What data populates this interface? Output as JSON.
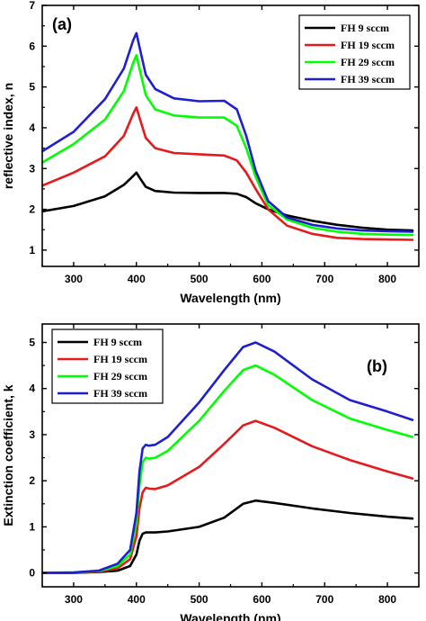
{
  "chart_data": [
    {
      "type": "line",
      "panel_label": "(a)",
      "xlabel": "Wavelength (nm)",
      "ylabel": "reflective index, n",
      "xlim": [
        250,
        850
      ],
      "ylim": [
        0.6,
        7
      ],
      "xticks": [
        300,
        400,
        500,
        600,
        700,
        800
      ],
      "yticks": [
        1,
        2,
        3,
        4,
        5,
        6,
        7
      ],
      "legend_position": "top-right",
      "series": [
        {
          "name": "FH 9 sccm",
          "color": "#000000",
          "x": [
            250,
            300,
            350,
            380,
            395,
            400,
            405,
            415,
            430,
            460,
            500,
            540,
            560,
            575,
            590,
            610,
            640,
            680,
            720,
            760,
            800,
            840
          ],
          "y": [
            1.95,
            2.08,
            2.32,
            2.6,
            2.82,
            2.9,
            2.78,
            2.55,
            2.45,
            2.41,
            2.4,
            2.4,
            2.38,
            2.3,
            2.15,
            2.0,
            1.85,
            1.72,
            1.62,
            1.55,
            1.5,
            1.48
          ]
        },
        {
          "name": "FH 19 sccm",
          "color": "#e41a1c",
          "x": [
            250,
            300,
            350,
            380,
            395,
            400,
            405,
            415,
            430,
            460,
            500,
            540,
            560,
            575,
            590,
            610,
            640,
            680,
            720,
            760,
            800,
            840
          ],
          "y": [
            2.58,
            2.9,
            3.3,
            3.8,
            4.35,
            4.5,
            4.25,
            3.75,
            3.5,
            3.38,
            3.35,
            3.32,
            3.2,
            2.9,
            2.5,
            2.0,
            1.6,
            1.4,
            1.3,
            1.27,
            1.26,
            1.25
          ]
        },
        {
          "name": "FH 29 sccm",
          "color": "#00ff00",
          "x": [
            250,
            300,
            350,
            380,
            395,
            400,
            405,
            415,
            430,
            460,
            500,
            540,
            560,
            575,
            590,
            610,
            640,
            680,
            720,
            760,
            800,
            840
          ],
          "y": [
            3.15,
            3.6,
            4.2,
            4.9,
            5.6,
            5.78,
            5.45,
            4.8,
            4.45,
            4.3,
            4.25,
            4.25,
            4.05,
            3.5,
            2.8,
            2.1,
            1.75,
            1.55,
            1.45,
            1.4,
            1.38,
            1.37
          ]
        },
        {
          "name": "FH 39 sccm",
          "color": "#1f1fd1",
          "x": [
            250,
            300,
            350,
            380,
            395,
            400,
            405,
            415,
            430,
            460,
            500,
            540,
            560,
            575,
            590,
            610,
            640,
            680,
            720,
            760,
            800,
            840
          ],
          "y": [
            3.42,
            3.9,
            4.7,
            5.45,
            6.15,
            6.32,
            5.98,
            5.3,
            4.95,
            4.72,
            4.65,
            4.66,
            4.45,
            3.8,
            2.95,
            2.2,
            1.8,
            1.62,
            1.53,
            1.48,
            1.46,
            1.45
          ]
        }
      ]
    },
    {
      "type": "line",
      "panel_label": "(b)",
      "xlabel": "Wavelength (nm)",
      "ylabel": "Extinction coefficient, k",
      "xlim": [
        250,
        850
      ],
      "ylim": [
        -0.3,
        5.4
      ],
      "xticks": [
        300,
        400,
        500,
        600,
        700,
        800
      ],
      "yticks": [
        0,
        1,
        2,
        3,
        4,
        5
      ],
      "legend_position": "top-left",
      "series": [
        {
          "name": "FH 9 sccm",
          "color": "#000000",
          "x": [
            250,
            300,
            340,
            370,
            390,
            400,
            405,
            410,
            415,
            420,
            430,
            450,
            500,
            540,
            570,
            590,
            620,
            680,
            740,
            800,
            840
          ],
          "y": [
            0,
            0,
            0.02,
            0.05,
            0.15,
            0.4,
            0.7,
            0.85,
            0.88,
            0.88,
            0.88,
            0.9,
            1.0,
            1.2,
            1.5,
            1.57,
            1.52,
            1.4,
            1.3,
            1.22,
            1.18
          ]
        },
        {
          "name": "FH 19 sccm",
          "color": "#e41a1c",
          "x": [
            250,
            300,
            340,
            370,
            390,
            400,
            405,
            410,
            415,
            420,
            430,
            450,
            500,
            540,
            570,
            590,
            620,
            680,
            740,
            800,
            840
          ],
          "y": [
            0,
            0,
            0.03,
            0.1,
            0.3,
            0.8,
            1.4,
            1.75,
            1.85,
            1.83,
            1.82,
            1.9,
            2.3,
            2.8,
            3.2,
            3.3,
            3.15,
            2.75,
            2.45,
            2.2,
            2.05
          ]
        },
        {
          "name": "FH 29 sccm",
          "color": "#00ff00",
          "x": [
            250,
            300,
            340,
            370,
            390,
            400,
            405,
            410,
            415,
            420,
            430,
            450,
            500,
            540,
            570,
            590,
            620,
            680,
            740,
            800,
            840
          ],
          "y": [
            0,
            0.01,
            0.04,
            0.15,
            0.4,
            1.1,
            1.9,
            2.4,
            2.5,
            2.48,
            2.5,
            2.65,
            3.3,
            3.95,
            4.4,
            4.5,
            4.3,
            3.75,
            3.35,
            3.1,
            2.95
          ]
        },
        {
          "name": "FH 39 sccm",
          "color": "#1f1fd1",
          "x": [
            250,
            300,
            340,
            370,
            390,
            400,
            405,
            410,
            415,
            420,
            430,
            450,
            500,
            540,
            570,
            590,
            620,
            680,
            740,
            800,
            840
          ],
          "y": [
            0,
            0.01,
            0.05,
            0.2,
            0.5,
            1.3,
            2.2,
            2.7,
            2.78,
            2.76,
            2.78,
            2.95,
            3.7,
            4.4,
            4.9,
            5.0,
            4.8,
            4.2,
            3.75,
            3.5,
            3.32
          ]
        }
      ]
    }
  ]
}
